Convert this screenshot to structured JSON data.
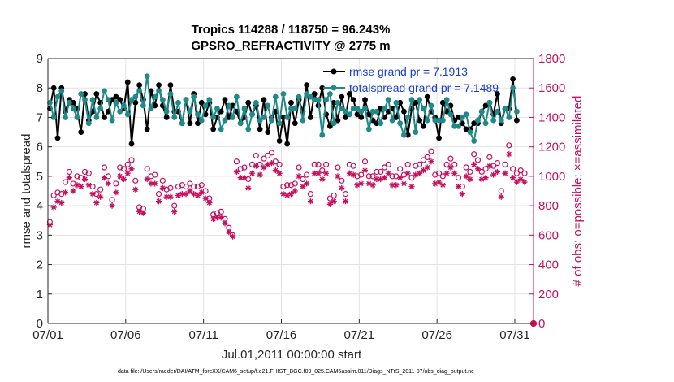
{
  "chart_data": {
    "type": "line",
    "title_line1": "Tropics 114288 / 118750 = 96.243%",
    "title_line2": "GPSRO_REFRACTIVITY @ 2775 m",
    "xlabel": "Jul.01,2011 00:00:00 start",
    "ylabel_left": "rmse and totalspread",
    "ylabel_right": "# of obs: o=possible; ×=assimilated",
    "x_ticks": [
      "07/01",
      "07/06",
      "07/11",
      "07/16",
      "07/21",
      "07/26",
      "07/31"
    ],
    "x_tick_days": [
      0,
      5,
      10,
      15,
      20,
      25,
      30
    ],
    "xlim_days": [
      0,
      31.2
    ],
    "ylim_left": [
      0,
      9
    ],
    "yticks_left": [
      "0",
      "1",
      "2",
      "3",
      "4",
      "5",
      "6",
      "7",
      "8",
      "9"
    ],
    "ylim_right": [
      0,
      1800
    ],
    "yticks_right": [
      "0",
      "200",
      "400",
      "600",
      "800",
      "1000",
      "1200",
      "1400",
      "1600",
      "1800"
    ],
    "footnote": "data file: /Users/raeder/DAI/ATM_forcXX/CAM6_setup/f.e21.FHIST_BGC.f09_025.CAM6assim.011/Diags_NTrS_2011-07/obs_diag_output.nc",
    "series": [
      {
        "name": "rmse",
        "legend": "rmse grand pr = 7.1913",
        "color": "#000000",
        "axis": "left",
        "values": [
          7.3,
          8.0,
          6.3,
          8.0,
          7.2,
          7.6,
          7.5,
          7.3,
          6.5,
          7.8,
          6.9,
          7.2,
          7.8,
          7.5,
          7.0,
          7.2,
          7.6,
          7.7,
          7.6,
          7.3,
          8.2,
          6.1,
          7.5,
          8.1,
          7.6,
          6.6,
          7.9,
          7.4,
          8.1,
          7.4,
          7.0,
          8.1,
          7.2,
          7.2,
          6.8,
          7.6,
          6.8,
          7.8,
          6.8,
          7.5,
          7.1,
          7.5,
          6.6,
          7.0,
          7.2,
          7.6,
          7.0,
          7.4,
          7.2,
          6.8,
          7.0,
          7.5,
          7.1,
          7.4,
          6.6,
          7.6,
          6.5,
          7.0,
          7.2,
          6.2,
          7.0,
          6.1,
          7.5,
          6.8,
          7.6,
          7.2,
          8.1,
          7.0,
          7.8,
          7.4,
          8.0,
          7.1,
          6.7,
          7.5,
          6.9,
          7.7,
          7.0,
          7.8,
          7.6,
          7.1,
          7.0,
          7.6,
          7.1,
          6.9,
          6.8,
          7.3,
          7.0,
          7.2,
          7.3,
          7.0,
          7.5,
          7.2,
          6.4,
          7.3,
          7.5,
          6.9,
          6.7,
          7.7,
          7.2,
          7.0,
          6.3,
          7.5,
          7.2,
          7.4,
          6.9,
          7.0,
          6.8,
          6.6,
          6.6,
          6.8,
          6.8,
          7.2,
          7.4,
          7.5,
          7.1,
          7.8,
          6.8,
          7.3,
          7.3,
          8.3,
          6.9
        ],
        "last_point": {
          "day": 31.2,
          "value": 0.0
        }
      },
      {
        "name": "totalspread",
        "legend": "totalspread grand pr = 7.1489",
        "color": "#1f8a8a",
        "axis": "left",
        "values": [
          7.5,
          7.0,
          7.7,
          7.9,
          7.0,
          7.5,
          7.3,
          7.0,
          7.8,
          7.6,
          6.8,
          7.6,
          7.0,
          7.3,
          7.9,
          7.6,
          6.9,
          7.5,
          7.2,
          7.4,
          7.1,
          7.6,
          7.7,
          7.9,
          7.4,
          8.4,
          7.3,
          7.7,
          7.9,
          7.6,
          7.2,
          7.8,
          7.0,
          7.5,
          6.8,
          7.6,
          7.2,
          7.7,
          7.1,
          6.9,
          7.4,
          7.6,
          7.0,
          7.3,
          6.6,
          6.9,
          7.4,
          7.0,
          7.7,
          6.8,
          7.3,
          6.6,
          7.1,
          7.5,
          6.9,
          7.0,
          7.4,
          6.9,
          7.7,
          6.8,
          7.8,
          7.0,
          7.3,
          7.3,
          7.7,
          6.9,
          7.8,
          7.7,
          7.6,
          7.6,
          6.4,
          7.6,
          7.8,
          6.8,
          7.5,
          7.3,
          7.2,
          7.1,
          7.3,
          7.3,
          7.2,
          7.3,
          6.6,
          7.2,
          7.2,
          6.8,
          7.3,
          7.6,
          6.9,
          7.5,
          6.8,
          6.4,
          7.0,
          7.6,
          6.5,
          7.6,
          7.3,
          6.9,
          7.4,
          6.9,
          6.9,
          6.9,
          7.6,
          7.1,
          6.7,
          6.7,
          7.0,
          7.1,
          6.5,
          6.2,
          6.9,
          7.2,
          6.8,
          7.5,
          6.9,
          7.2,
          6.9,
          7.3,
          7.0,
          8.0,
          7.2
        ],
        "last_point": {
          "day": 31.2,
          "value": 0.0
        }
      },
      {
        "name": "possible",
        "color": "#c4115e",
        "marker": "circle",
        "axis": "right",
        "values": [
          690,
          870,
          890,
          880,
          960,
          1030,
          950,
          1000,
          990,
          1030,
          1020,
          930,
          880,
          910,
          1060,
          1000,
          840,
          950,
          1060,
          1050,
          1080,
          1110,
          970,
          790,
          780,
          1050,
          1000,
          1010,
          880,
          970,
          910,
          920,
          800,
          930,
          940,
          930,
          950,
          930,
          930,
          940,
          900,
          850,
          740,
          750,
          760,
          710,
          650,
          600,
          1100,
          1050,
          1060,
          980,
          1080,
          1140,
          1080,
          1120,
          1140,
          1160,
          1100,
          1080,
          930,
          940,
          940,
          950,
          1060,
          980,
          1010,
          880,
          1080,
          1080,
          1040,
          1080,
          850,
          870,
          1060,
          970,
          880,
          1080,
          1070,
          1000,
          1010,
          1100,
          1000,
          1000,
          1030,
          1030,
          1060,
          1080,
          1000,
          1000,
          1050,
          1010,
          1080,
          990,
          1070,
          1080,
          1110,
          1130,
          1170,
          1010,
          1020,
          1000,
          1080,
          1120,
          1080,
          990,
          930,
          1060,
          1030,
          1150,
          1110,
          1030,
          1050,
          1130,
          1070,
          1090,
          900,
          1080,
          1210,
          1050,
          1020,
          1040,
          1020
        ]
      },
      {
        "name": "assimilated",
        "color": "#c4115e",
        "marker": "asterisk",
        "axis": "right",
        "values": [
          670,
          790,
          830,
          820,
          890,
          990,
          900,
          940,
          930,
          980,
          940,
          880,
          820,
          860,
          990,
          950,
          800,
          890,
          1000,
          980,
          1020,
          1050,
          910,
          760,
          750,
          980,
          950,
          950,
          830,
          920,
          860,
          860,
          760,
          870,
          880,
          880,
          900,
          880,
          870,
          890,
          850,
          820,
          710,
          720,
          720,
          680,
          620,
          590,
          1030,
          990,
          990,
          920,
          1020,
          1070,
          1010,
          1060,
          1080,
          1090,
          1040,
          1020,
          880,
          870,
          880,
          900,
          1000,
          930,
          950,
          830,
          1020,
          1020,
          980,
          1020,
          810,
          830,
          1000,
          920,
          830,
          1020,
          1010,
          940,
          950,
          1040,
          950,
          940,
          980,
          980,
          990,
          1020,
          940,
          940,
          990,
          950,
          1020,
          930,
          1010,
          1020,
          1040,
          1060,
          1100,
          950,
          960,
          940,
          1020,
          1060,
          1020,
          930,
          880,
          1000,
          980,
          1080,
          1050,
          980,
          990,
          1070,
          1010,
          1030,
          860,
          1020,
          1150,
          990,
          960,
          980,
          960
        ]
      }
    ]
  }
}
